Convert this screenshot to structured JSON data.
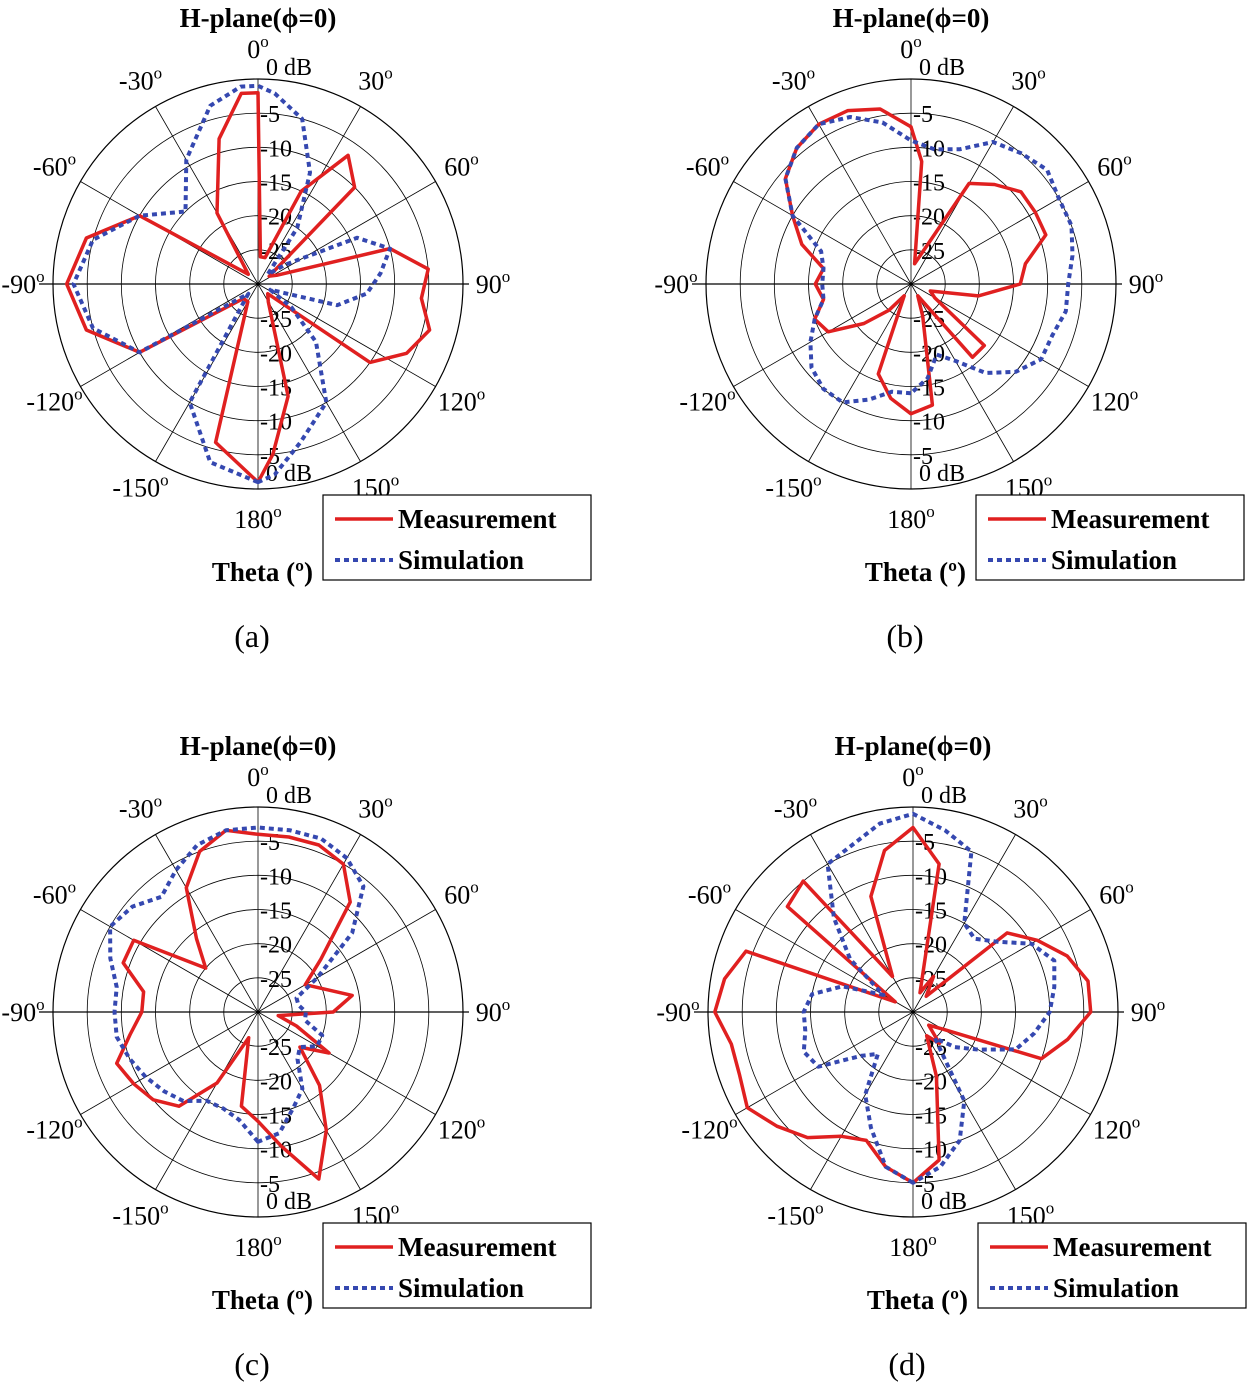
{
  "colors": {
    "measurement": "#e02020",
    "simulation": "#3548b0",
    "grid": "#000000"
  },
  "chart_data": [
    {
      "type": "polar-line",
      "title": "H-plane(ϕ=0)",
      "caption": "(a)",
      "theta_label": "Theta (º)",
      "r_unit": "0 dB",
      "rlim": [
        -30,
        0
      ],
      "r_ticks_top": [
        "-5",
        "-10",
        "-15",
        "-20",
        "-25"
      ],
      "r_ticks_bottom": [
        "-25",
        "-20",
        "-15",
        "-10",
        "-5"
      ],
      "r_tick_bottom_zero": "0 dB",
      "angle_labels": [
        {
          "deg": 0,
          "text": "0"
        },
        {
          "deg": 30,
          "text": "30"
        },
        {
          "deg": 60,
          "text": "60"
        },
        {
          "deg": 90,
          "text": "90"
        },
        {
          "deg": 120,
          "text": "120"
        },
        {
          "deg": 150,
          "text": "150"
        },
        {
          "deg": 180,
          "text": "180"
        },
        {
          "deg": -150,
          "text": "-150"
        },
        {
          "deg": -120,
          "text": "-120"
        },
        {
          "deg": -90,
          "text": "-90"
        },
        {
          "deg": -60,
          "text": "-60"
        },
        {
          "deg": -30,
          "text": "-30"
        }
      ],
      "legend": [
        "Measurement",
        "Simulation"
      ],
      "series": [
        {
          "name": "Measurement",
          "style": "solid",
          "theta": [
            -180,
            -165,
            -150,
            -135,
            -120,
            -105,
            -90,
            -75,
            -60,
            -45,
            -30,
            -15,
            -5,
            0,
            5,
            15,
            25,
            35,
            45,
            55,
            65,
            75,
            85,
            95,
            105,
            115,
            125,
            135,
            150,
            165,
            175
          ],
          "r_db": [
            -1,
            -6,
            -27,
            -27,
            -10,
            -4,
            -2,
            -4,
            -10,
            -28,
            -18,
            -8,
            -2,
            -2,
            -26,
            -26,
            -15,
            -7,
            -10,
            -28,
            -27,
            -10,
            -5,
            -6,
            -4,
            -6,
            -10,
            -28,
            -27,
            -13,
            -5
          ]
        },
        {
          "name": "Simulation",
          "style": "dotted",
          "theta": [
            -180,
            -165,
            -150,
            -135,
            -120,
            -105,
            -90,
            -75,
            -60,
            -45,
            -30,
            -15,
            -5,
            0,
            5,
            15,
            25,
            35,
            45,
            55,
            65,
            75,
            85,
            95,
            105,
            115,
            125,
            135,
            150,
            165,
            175
          ],
          "r_db": [
            -1,
            -3,
            -10,
            -28,
            -10,
            -5,
            -3,
            -5,
            -10,
            -15,
            -9,
            -3,
            -1,
            -1,
            -2,
            -5,
            -12,
            -20,
            -28,
            -25,
            -14,
            -10,
            -12,
            -14,
            -18,
            -28,
            -24,
            -18,
            -10,
            -6,
            -2
          ]
        }
      ]
    },
    {
      "type": "polar-line",
      "title": "H-plane(ϕ=0)",
      "caption": "(b)",
      "theta_label": "Theta (º)",
      "r_unit": "0 dB",
      "rlim": [
        -30,
        0
      ],
      "r_ticks_top": [
        "-5",
        "-10",
        "-15",
        "-20",
        "-25"
      ],
      "r_ticks_bottom": [
        "-25",
        "-20",
        "-15",
        "-10",
        "-5"
      ],
      "r_tick_bottom_zero": "0 dB",
      "angle_labels": [
        {
          "deg": 0,
          "text": "0"
        },
        {
          "deg": 30,
          "text": "30"
        },
        {
          "deg": 60,
          "text": "60"
        },
        {
          "deg": 90,
          "text": "90"
        },
        {
          "deg": 120,
          "text": "120"
        },
        {
          "deg": 150,
          "text": "150"
        },
        {
          "deg": 180,
          "text": "180"
        },
        {
          "deg": -150,
          "text": "-150"
        },
        {
          "deg": -120,
          "text": "-120"
        },
        {
          "deg": -90,
          "text": "-90"
        },
        {
          "deg": -60,
          "text": "-60"
        },
        {
          "deg": -30,
          "text": "-30"
        }
      ],
      "legend": [
        "Measurement",
        "Simulation"
      ],
      "series": [
        {
          "name": "Measurement",
          "style": "solid",
          "theta": [
            -180,
            -170,
            -160,
            -150,
            -140,
            -130,
            -120,
            -110,
            -100,
            -90,
            -80,
            -70,
            -60,
            -50,
            -40,
            -30,
            -20,
            -10,
            0,
            5,
            10,
            20,
            30,
            40,
            50,
            60,
            70,
            80,
            90,
            100,
            110,
            120,
            130,
            140,
            150,
            160,
            170
          ],
          "r_db": [
            -11,
            -13,
            -16,
            -28,
            -25,
            -21,
            -16,
            -15,
            -17,
            -16,
            -17,
            -13,
            -10,
            -6,
            -4,
            -3,
            -3,
            -4,
            -7,
            -12,
            -27,
            -25,
            -13,
            -11,
            -9,
            -9,
            -9,
            -13,
            -14,
            -20,
            -27,
            -26,
            -16,
            -16,
            -28,
            -25,
            -12
          ]
        },
        {
          "name": "Simulation",
          "style": "dotted",
          "theta": [
            -180,
            -170,
            -160,
            -150,
            -140,
            -130,
            -120,
            -110,
            -100,
            -90,
            -80,
            -70,
            -60,
            -50,
            -40,
            -30,
            -20,
            -10,
            0,
            10,
            20,
            30,
            40,
            50,
            60,
            70,
            80,
            90,
            100,
            110,
            120,
            130,
            140,
            150,
            160,
            170
          ],
          "r_db": [
            -14,
            -14,
            -12,
            -10,
            -10,
            -11,
            -13,
            -15,
            -17,
            -17,
            -17,
            -16,
            -10,
            -6,
            -4,
            -3,
            -4,
            -6,
            -9,
            -10,
            -9,
            -6,
            -5,
            -4,
            -5,
            -5,
            -6,
            -7,
            -7,
            -8,
            -8,
            -10,
            -13,
            -17,
            -19,
            -16
          ]
        }
      ]
    },
    {
      "type": "polar-line",
      "title": "H-plane(ϕ=0)",
      "caption": "(c)",
      "theta_label": "Theta (º)",
      "r_unit": "0 dB",
      "rlim": [
        -30,
        0
      ],
      "r_ticks_top": [
        "-5",
        "-10",
        "-15",
        "-20",
        "-25"
      ],
      "r_ticks_bottom": [
        "-25",
        "-20",
        "-15",
        "-10",
        "-5"
      ],
      "r_tick_bottom_zero": "0 dB",
      "angle_labels": [
        {
          "deg": 0,
          "text": "0"
        },
        {
          "deg": 30,
          "text": "30"
        },
        {
          "deg": 60,
          "text": "60"
        },
        {
          "deg": 90,
          "text": "90"
        },
        {
          "deg": 120,
          "text": "120"
        },
        {
          "deg": 150,
          "text": "150"
        },
        {
          "deg": 180,
          "text": "180"
        },
        {
          "deg": -150,
          "text": "-150"
        },
        {
          "deg": -120,
          "text": "-120"
        },
        {
          "deg": -90,
          "text": "-90"
        },
        {
          "deg": -60,
          "text": "-60"
        },
        {
          "deg": -30,
          "text": "-30"
        }
      ],
      "legend": [
        "Measurement",
        "Simulation"
      ],
      "series": [
        {
          "name": "Measurement",
          "style": "solid",
          "theta": [
            -180,
            -170,
            -160,
            -150,
            -140,
            -130,
            -120,
            -110,
            -100,
            -90,
            -80,
            -70,
            -60,
            -50,
            -40,
            -30,
            -20,
            -10,
            0,
            10,
            20,
            30,
            40,
            50,
            60,
            70,
            80,
            90,
            100,
            110,
            120,
            130,
            140,
            150,
            160,
            170
          ],
          "r_db": [
            -14,
            -16,
            -26,
            -18,
            -12,
            -10,
            -9,
            -8,
            -11,
            -13,
            -13,
            -9,
            -9,
            -20,
            -16,
            -9,
            -5,
            -3,
            -4,
            -4,
            -4,
            -5,
            -9,
            -18,
            -22,
            -20,
            -16,
            -19,
            -27,
            -24,
            -18,
            -22,
            -16,
            -10,
            -4,
            -10
          ]
        },
        {
          "name": "Simulation",
          "style": "dotted",
          "theta": [
            -180,
            -170,
            -160,
            -150,
            -140,
            -130,
            -120,
            -110,
            -100,
            -90,
            -80,
            -70,
            -60,
            -50,
            -40,
            -30,
            -20,
            -10,
            0,
            10,
            20,
            30,
            40,
            50,
            60,
            70,
            80,
            90,
            100,
            110,
            120,
            130,
            140,
            150,
            160,
            170
          ],
          "r_db": [
            -11,
            -14,
            -15,
            -15,
            -13,
            -12,
            -11,
            -10,
            -9,
            -9,
            -9,
            -7,
            -5,
            -6,
            -8,
            -6,
            -4,
            -3,
            -3,
            -3,
            -3,
            -4,
            -6,
            -12,
            -20,
            -24,
            -24,
            -23,
            -23,
            -20,
            -20,
            -22,
            -21,
            -17,
            -15,
            -12
          ]
        }
      ]
    },
    {
      "type": "polar-line",
      "title": "H-plane(ϕ=0)",
      "caption": "(d)",
      "theta_label": "Theta (º)",
      "r_unit": "0 dB",
      "rlim": [
        -30,
        0
      ],
      "r_ticks_top": [
        "-5",
        "-10",
        "-15",
        "-20",
        "-25"
      ],
      "r_ticks_bottom": [
        "-25",
        "-20",
        "-15",
        "-10",
        "-5"
      ],
      "r_tick_bottom_zero": "0 dB",
      "angle_labels": [
        {
          "deg": 0,
          "text": "0"
        },
        {
          "deg": 30,
          "text": "30"
        },
        {
          "deg": 60,
          "text": "60"
        },
        {
          "deg": 90,
          "text": "90"
        },
        {
          "deg": 120,
          "text": "120"
        },
        {
          "deg": 150,
          "text": "150"
        },
        {
          "deg": 180,
          "text": "180"
        },
        {
          "deg": -150,
          "text": "-150"
        },
        {
          "deg": -120,
          "text": "-120"
        },
        {
          "deg": -90,
          "text": "-90"
        },
        {
          "deg": -60,
          "text": "-60"
        },
        {
          "deg": -30,
          "text": "-30"
        }
      ],
      "legend": [
        "Measurement",
        "Simulation"
      ],
      "series": [
        {
          "name": "Measurement",
          "style": "solid",
          "theta": [
            -180,
            -170,
            -160,
            -150,
            -140,
            -130,
            -120,
            -110,
            -100,
            -90,
            -80,
            -70,
            -60,
            -50,
            -40,
            -30,
            -20,
            -10,
            0,
            10,
            20,
            30,
            40,
            50,
            60,
            70,
            80,
            90,
            100,
            110,
            120,
            130,
            140,
            150,
            160,
            170
          ],
          "r_db": [
            -5,
            -7,
            -10,
            -9,
            -6,
            -4,
            -2,
            -3,
            -3,
            -1,
            -2,
            -4,
            -27,
            -6,
            -5,
            -24,
            -12,
            -6,
            -3,
            -8,
            -27,
            -24,
            -27,
            -12,
            -9,
            -6,
            -4,
            -4,
            -7,
            -10,
            -25,
            -27,
            -24,
            -26,
            -20,
            -8
          ]
        },
        {
          "name": "Simulation",
          "style": "dotted",
          "theta": [
            -180,
            -170,
            -160,
            -150,
            -140,
            -130,
            -120,
            -110,
            -100,
            -90,
            -80,
            -70,
            -60,
            -50,
            -40,
            -30,
            -20,
            -10,
            0,
            10,
            20,
            30,
            40,
            50,
            60,
            70,
            80,
            90,
            100,
            110,
            120,
            130,
            140,
            150,
            160,
            170
          ],
          "r_db": [
            -5,
            -7,
            -12,
            -16,
            -22,
            -20,
            -14,
            -13,
            -14,
            -14,
            -15,
            -19,
            -25,
            -18,
            -12,
            -5,
            -4,
            -2,
            -1,
            -3,
            -5,
            -15,
            -16,
            -14,
            -10,
            -8,
            -9,
            -10,
            -12,
            -14,
            -19,
            -22,
            -25,
            -15,
            -10,
            -7
          ]
        }
      ]
    }
  ]
}
